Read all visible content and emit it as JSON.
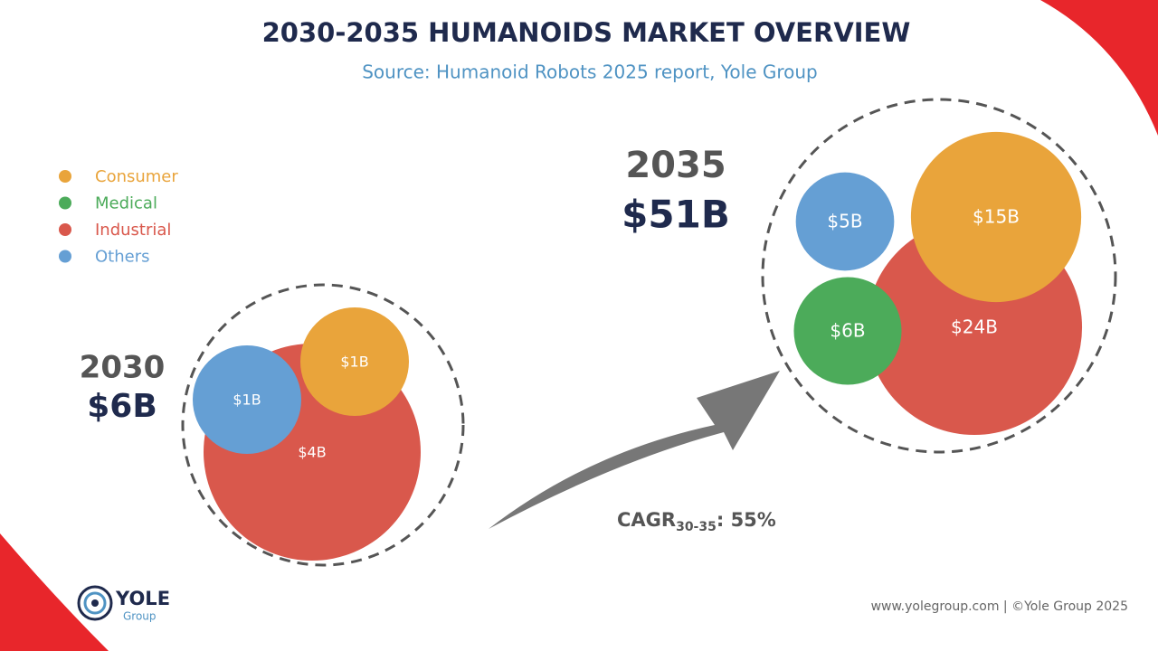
{
  "title": "2030-2035 HUMANOIDS MARKET OVERVIEW",
  "subtitle": "Source: Humanoid Robots 2025 report, Yole Group",
  "chart_data": {
    "type": "bubble",
    "categories": [
      "2030",
      "2035"
    ],
    "totals": [
      6,
      51
    ],
    "total_labels": [
      "$6B",
      "$51B"
    ],
    "series": [
      {
        "name": "Consumer",
        "color": "#e9a43b",
        "values": [
          1,
          15
        ],
        "value_labels": [
          "$1B",
          "$15B"
        ]
      },
      {
        "name": "Medical",
        "color": "#4cab5a",
        "values": [
          null,
          6
        ],
        "value_labels": [
          null,
          "$6B"
        ]
      },
      {
        "name": "Industrial",
        "color": "#d9584c",
        "values": [
          4,
          24
        ],
        "value_labels": [
          "$4B",
          "$24B"
        ]
      },
      {
        "name": "Others",
        "color": "#659fd4",
        "values": [
          1,
          5
        ],
        "value_labels": [
          "$1B",
          "$5B"
        ]
      }
    ],
    "cagr": {
      "label": "CAGR",
      "period": "30-35",
      "value": 55,
      "value_label": ": 55%"
    }
  },
  "footer": {
    "logo": "YOLE",
    "logo_sub": "Group",
    "credit": "www.yolegroup.com | ©Yole Group 2025"
  }
}
